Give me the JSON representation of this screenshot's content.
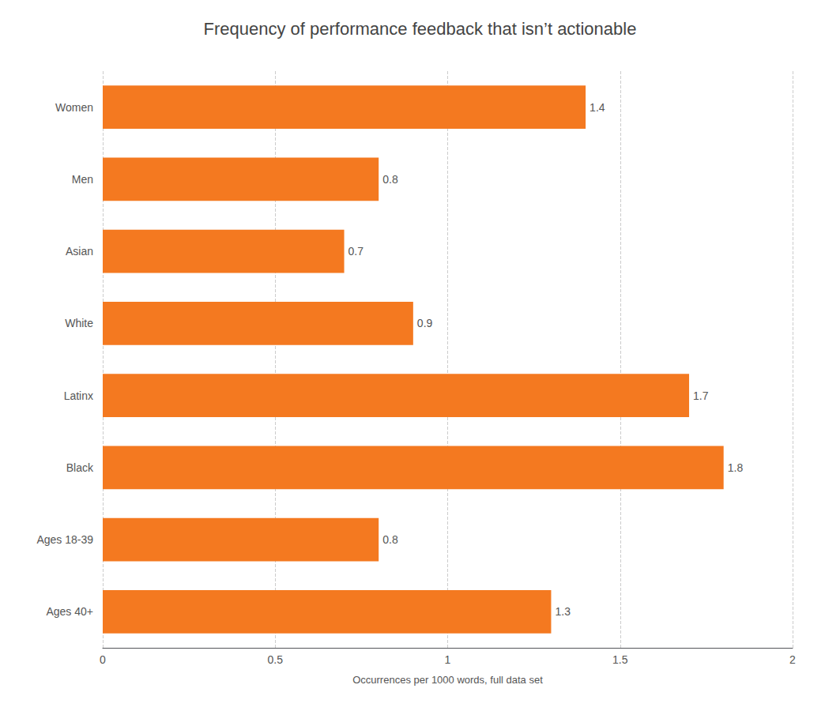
{
  "chart_data": {
    "type": "bar",
    "orientation": "horizontal",
    "title": "Frequency of performance feedback that isn’t actionable",
    "categories": [
      "Women",
      "Men",
      "Asian",
      "White",
      "Latinx",
      "Black",
      "Ages 18-39",
      "Ages 40+"
    ],
    "values": [
      1.4,
      0.8,
      0.7,
      0.9,
      1.7,
      1.8,
      0.8,
      1.3
    ],
    "color": "#F47920",
    "xlabel": "Occurrences per 1000 words, full data set",
    "xlim": [
      0,
      2.0
    ],
    "xticks": [
      0,
      0.5,
      1,
      1.5,
      2
    ],
    "grid": true,
    "data_labels": true
  }
}
